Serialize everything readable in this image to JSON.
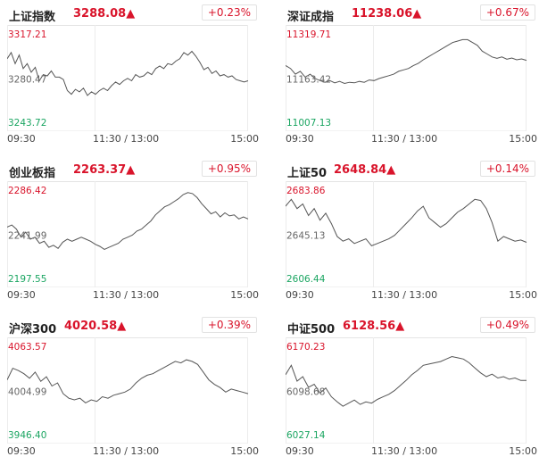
{
  "times": {
    "open": "09:30",
    "mid": "11:30 / 13:00",
    "close": "15:00"
  },
  "cards": [
    {
      "name": "上证指数",
      "value": "3288.08",
      "arrow": "▲",
      "change": "+0.23%",
      "y_high": "3317.21",
      "y_mid": "3280.47",
      "y_low": "3243.72",
      "series": [
        3297,
        3302,
        3293,
        3300,
        3289,
        3293,
        3286,
        3290,
        3279,
        3284,
        3283,
        3287,
        3282,
        3282,
        3280,
        3271,
        3268,
        3272,
        3270,
        3273,
        3267,
        3270,
        3268,
        3271,
        3273,
        3271,
        3275,
        3278,
        3276,
        3279,
        3281,
        3279,
        3284,
        3282,
        3283,
        3286,
        3284,
        3289,
        3291,
        3289,
        3293,
        3292,
        3295,
        3297,
        3302,
        3300,
        3303,
        3299,
        3294,
        3288,
        3290,
        3285,
        3287,
        3283,
        3284,
        3282,
        3283,
        3280,
        3279,
        3278,
        3279
      ]
    },
    {
      "name": "深证成指",
      "value": "11238.06",
      "arrow": "▲",
      "change": "+0.67%",
      "y_high": "11319.71",
      "y_mid": "11163.42",
      "y_low": "11007.13",
      "series": [
        11210,
        11200,
        11180,
        11190,
        11170,
        11180,
        11165,
        11158,
        11152,
        11158,
        11150,
        11155,
        11148,
        11152,
        11150,
        11155,
        11152,
        11160,
        11158,
        11165,
        11170,
        11175,
        11180,
        11190,
        11195,
        11200,
        11210,
        11218,
        11230,
        11240,
        11250,
        11260,
        11270,
        11280,
        11290,
        11295,
        11300,
        11300,
        11290,
        11280,
        11260,
        11250,
        11240,
        11235,
        11240,
        11232,
        11236,
        11230,
        11233,
        11228
      ]
    },
    {
      "name": "创业板指",
      "value": "2263.37",
      "arrow": "▲",
      "change": "+0.95%",
      "y_high": "2286.42",
      "y_mid": "2241.99",
      "y_low": "2197.55",
      "series": [
        2250,
        2252,
        2248,
        2240,
        2245,
        2238,
        2240,
        2234,
        2236,
        2230,
        2232,
        2229,
        2235,
        2238,
        2236,
        2238,
        2240,
        2238,
        2236,
        2233,
        2231,
        2228,
        2230,
        2232,
        2234,
        2238,
        2240,
        2242,
        2246,
        2248,
        2252,
        2256,
        2262,
        2266,
        2270,
        2272,
        2275,
        2278,
        2282,
        2284,
        2283,
        2279,
        2273,
        2268,
        2263,
        2265,
        2260,
        2264,
        2261,
        2262,
        2258,
        2260,
        2258
      ]
    },
    {
      "name": "上证50",
      "value": "2648.84",
      "arrow": "▲",
      "change": "+0.14%",
      "y_high": "2683.86",
      "y_mid": "2645.13",
      "y_low": "2606.44",
      "series": [
        2670,
        2676,
        2668,
        2672,
        2662,
        2668,
        2658,
        2664,
        2655,
        2644,
        2640,
        2642,
        2638,
        2640,
        2642,
        2636,
        2638,
        2640,
        2642,
        2645,
        2650,
        2655,
        2660,
        2666,
        2670,
        2660,
        2656,
        2652,
        2655,
        2660,
        2665,
        2668,
        2672,
        2676,
        2675,
        2668,
        2656,
        2640,
        2644,
        2642,
        2640,
        2641,
        2639
      ]
    },
    {
      "name": "沪深300",
      "value": "4020.58",
      "arrow": "▲",
      "change": "+0.39%",
      "y_high": "4063.57",
      "y_mid": "4004.99",
      "y_low": "3946.40",
      "series": [
        4020,
        4035,
        4032,
        4028,
        4022,
        4030,
        4018,
        4024,
        4012,
        4016,
        4002,
        3996,
        3994,
        3996,
        3990,
        3994,
        3992,
        3998,
        3996,
        4000,
        4002,
        4004,
        4008,
        4016,
        4022,
        4026,
        4028,
        4032,
        4036,
        4040,
        4044,
        4042,
        4046,
        4044,
        4040,
        4030,
        4020,
        4014,
        4010,
        4004,
        4008,
        4006,
        4004,
        4002
      ]
    },
    {
      "name": "中证500",
      "value": "6128.56",
      "arrow": "▲",
      "change": "+0.49%",
      "y_high": "6170.23",
      "y_mid": "6098.68",
      "y_low": "6027.14",
      "series": [
        6125,
        6140,
        6115,
        6122,
        6105,
        6110,
        6096,
        6104,
        6090,
        6082,
        6075,
        6080,
        6085,
        6078,
        6082,
        6080,
        6086,
        6090,
        6094,
        6100,
        6108,
        6116,
        6125,
        6132,
        6140,
        6142,
        6144,
        6146,
        6150,
        6154,
        6152,
        6150,
        6144,
        6136,
        6128,
        6122,
        6126,
        6120,
        6122,
        6118,
        6120,
        6116,
        6116
      ]
    }
  ]
}
